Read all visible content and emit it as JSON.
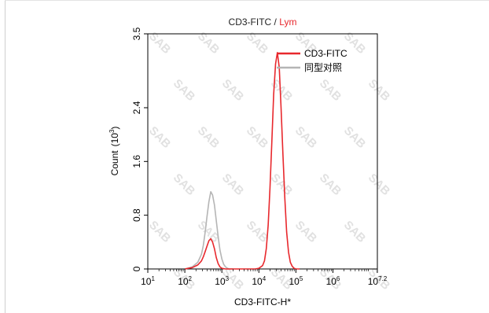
{
  "chart_data": {
    "type": "line",
    "title_part1": "CD3-FITC",
    "title_sep": " / ",
    "title_part2": "Lym",
    "xlabel": "CD3-FITC-H*",
    "ylabel": "Count",
    "ylabel_unit_prefix": "(10",
    "ylabel_unit_exp": "3",
    "ylabel_unit_suffix": ")",
    "xscale": "log",
    "xlim": [
      10,
      15848932
    ],
    "ylim": [
      0,
      3.5
    ],
    "yticks": [
      "0",
      "0.8",
      "1.6",
      "2.4",
      "3.5"
    ],
    "ytick_values": [
      0,
      0.8,
      1.6,
      2.4,
      3.5
    ],
    "xticks": [
      {
        "base": "10",
        "exp": "1",
        "value": 10
      },
      {
        "base": "10",
        "exp": "2",
        "value": 100
      },
      {
        "base": "10",
        "exp": "3",
        "value": 1000
      },
      {
        "base": "10",
        "exp": "4",
        "value": 10000
      },
      {
        "base": "10",
        "exp": "5",
        "value": 100000
      },
      {
        "base": "10",
        "exp": "6",
        "value": 1000000
      },
      {
        "base": "10",
        "exp": "7.2",
        "value": 15848932
      }
    ],
    "legend_position": "top-right",
    "watermark": "SAB",
    "series": [
      {
        "name": "CD3-FITC",
        "color": "#e8282d",
        "x": [
          100,
          158,
          224,
          282,
          316,
          355,
          398,
          447,
          501,
          562,
          631,
          708,
          794,
          891,
          1000,
          1259,
          1585,
          2000,
          2512,
          3162,
          3981,
          5012,
          6310,
          7943,
          10000,
          12589,
          14125,
          15849,
          17783,
          19953,
          22387,
          25119,
          28184,
          31623,
          35481,
          39811,
          44668,
          50119,
          56234,
          63096,
          70795,
          79433,
          89125,
          100000,
          125893
        ],
        "y": [
          0,
          0.02,
          0.06,
          0.12,
          0.18,
          0.26,
          0.34,
          0.42,
          0.45,
          0.4,
          0.3,
          0.17,
          0.08,
          0.03,
          0.01,
          0,
          0,
          0,
          0,
          0,
          0,
          0,
          0,
          0,
          0.01,
          0.05,
          0.12,
          0.3,
          0.65,
          1.2,
          1.9,
          2.6,
          3.05,
          3.22,
          3.0,
          2.4,
          1.7,
          1.05,
          0.55,
          0.25,
          0.1,
          0.04,
          0.01,
          0,
          0
        ]
      },
      {
        "name": "同型对照",
        "color": "#b5b5b5",
        "x": [
          100,
          158,
          224,
          282,
          316,
          355,
          398,
          447,
          501,
          562,
          631,
          708,
          794,
          891,
          1000,
          1122,
          1259,
          1413,
          1585,
          2000
        ],
        "y": [
          0,
          0.03,
          0.1,
          0.22,
          0.35,
          0.55,
          0.78,
          1.0,
          1.15,
          1.1,
          0.95,
          0.72,
          0.48,
          0.28,
          0.15,
          0.07,
          0.03,
          0.01,
          0,
          0
        ]
      }
    ]
  }
}
